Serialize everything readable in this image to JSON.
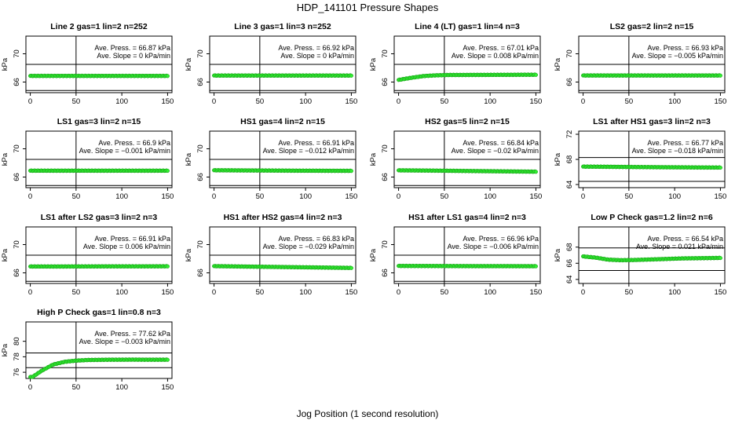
{
  "figure": {
    "title": "HDP_141101  Pressure Shapes",
    "xlabel": "Jog Position (1 second resolution)"
  },
  "style": {
    "point_fill": "#33ee33",
    "point_stroke": "#119911",
    "axis_color": "#000000"
  },
  "chart_data": [
    {
      "type": "scatter",
      "title": "Line 2 gas=1 lin=2 n=252",
      "ylabel": "kPa",
      "xlim": [
        0,
        150
      ],
      "ylim": [
        64.5,
        72.5
      ],
      "xticks": [
        "0",
        "50",
        "100",
        "150"
      ],
      "yticks": [
        "66",
        "70"
      ],
      "ref_vline": 50,
      "band": [
        64.8,
        68.5
      ],
      "ann_press": "Ave. Press. = 66.87  kPa",
      "ann_slope": "Ave. Slope = 0  kPa/min",
      "y_points": [
        66.87,
        66.87
      ]
    },
    {
      "type": "scatter",
      "title": "Line 3 gas=1 lin=3 n=252",
      "ylabel": "kPa",
      "xlim": [
        0,
        150
      ],
      "ylim": [
        64.5,
        72.5
      ],
      "xticks": [
        "0",
        "50",
        "100",
        "150"
      ],
      "yticks": [
        "66",
        "70"
      ],
      "ref_vline": 50,
      "band": [
        64.8,
        68.5
      ],
      "ann_press": "Ave. Press. = 66.92  kPa",
      "ann_slope": "Ave. Slope = 0  kPa/min",
      "y_points": [
        66.92,
        66.92
      ]
    },
    {
      "type": "scatter",
      "title": "Line 4 (LT) gas=1 lin=4 n=3",
      "ylabel": "kPa",
      "xlim": [
        0,
        150
      ],
      "ylim": [
        64.5,
        72.5
      ],
      "xticks": [
        "0",
        "50",
        "100",
        "150"
      ],
      "yticks": [
        "66",
        "70"
      ],
      "ref_vline": 50,
      "band": [
        64.8,
        68.5
      ],
      "ann_press": "Ave. Press. = 67.01  kPa",
      "ann_slope": "Ave. Slope = 0.008  kPa/min",
      "y_points": [
        66.3,
        66.6,
        66.85,
        66.95,
        67.0,
        67.0,
        67.01,
        67.01,
        67.02,
        67.02,
        67.03,
        67.03
      ]
    },
    {
      "type": "scatter",
      "title": "LS2 gas=2 lin=2 n=15",
      "ylabel": "kPa",
      "xlim": [
        0,
        150
      ],
      "ylim": [
        64.5,
        72.5
      ],
      "xticks": [
        "0",
        "50",
        "100",
        "150"
      ],
      "yticks": [
        "66",
        "70"
      ],
      "ref_vline": 50,
      "band": [
        64.8,
        68.5
      ],
      "ann_press": "Ave. Press. = 66.93  kPa",
      "ann_slope": "Ave. Slope = −0.005  kPa/min",
      "y_points": [
        66.93,
        66.93
      ]
    },
    {
      "type": "scatter",
      "title": "LS1 gas=3 lin=2 n=15",
      "ylabel": "kPa",
      "xlim": [
        0,
        150
      ],
      "ylim": [
        64.5,
        72.5
      ],
      "xticks": [
        "0",
        "50",
        "100",
        "150"
      ],
      "yticks": [
        "66",
        "70"
      ],
      "ref_vline": 50,
      "band": [
        64.8,
        68.5
      ],
      "ann_press": "Ave. Press. = 66.9  kPa",
      "ann_slope": "Ave. Slope = −0.001  kPa/min",
      "y_points": [
        66.9,
        66.9
      ]
    },
    {
      "type": "scatter",
      "title": "HS1 gas=4 lin=2 n=15",
      "ylabel": "kPa",
      "xlim": [
        0,
        150
      ],
      "ylim": [
        64.5,
        72.5
      ],
      "xticks": [
        "0",
        "50",
        "100",
        "150"
      ],
      "yticks": [
        "66",
        "70"
      ],
      "ref_vline": 50,
      "band": [
        64.8,
        68.5
      ],
      "ann_press": "Ave. Press. = 66.91  kPa",
      "ann_slope": "Ave. Slope = −0.012  kPa/min",
      "y_points": [
        66.96,
        66.94,
        66.92,
        66.9,
        66.89,
        66.88
      ]
    },
    {
      "type": "scatter",
      "title": "HS2 gas=5 lin=2 n=15",
      "ylabel": "kPa",
      "xlim": [
        0,
        150
      ],
      "ylim": [
        64.5,
        72.5
      ],
      "xticks": [
        "0",
        "50",
        "100",
        "150"
      ],
      "yticks": [
        "66",
        "70"
      ],
      "ref_vline": 50,
      "band": [
        64.8,
        68.5
      ],
      "ann_press": "Ave. Press. = 66.84  kPa",
      "ann_slope": "Ave. Slope = −0.02  kPa/min",
      "y_points": [
        66.95,
        66.92,
        66.88,
        66.84,
        66.8,
        66.76
      ]
    },
    {
      "type": "scatter",
      "title": "LS1 after HS1 gas=3 lin=2 n=3",
      "ylabel": "kPa",
      "xlim": [
        0,
        150
      ],
      "ylim": [
        63.5,
        72.5
      ],
      "xticks": [
        "0",
        "50",
        "100",
        "150"
      ],
      "yticks": [
        "64",
        "68",
        "72"
      ],
      "ref_vline": 50,
      "band": [
        64.5,
        68.3
      ],
      "ann_press": "Ave. Press. = 66.77  kPa",
      "ann_slope": "Ave. Slope = −0.018  kPa/min",
      "y_points": [
        66.85,
        66.82,
        66.78,
        66.75,
        66.72,
        66.7
      ]
    },
    {
      "type": "scatter",
      "title": "LS1 after LS2 gas=3 lin=2 n=3",
      "ylabel": "kPa",
      "xlim": [
        0,
        150
      ],
      "ylim": [
        64.5,
        72.5
      ],
      "xticks": [
        "0",
        "50",
        "100",
        "150"
      ],
      "yticks": [
        "66",
        "70"
      ],
      "ref_vline": 50,
      "band": [
        64.8,
        68.5
      ],
      "ann_press": "Ave. Press. = 66.91  kPa",
      "ann_slope": "Ave. Slope = 0.006  kPa/min",
      "y_points": [
        66.9,
        66.9,
        66.91,
        66.92,
        66.92,
        66.93
      ]
    },
    {
      "type": "scatter",
      "title": "HS1 after HS2 gas=4 lin=2 n=3",
      "ylabel": "kPa",
      "xlim": [
        0,
        150
      ],
      "ylim": [
        64.5,
        72.5
      ],
      "xticks": [
        "0",
        "50",
        "100",
        "150"
      ],
      "yticks": [
        "66",
        "70"
      ],
      "ref_vline": 50,
      "band": [
        64.8,
        68.5
      ],
      "ann_press": "Ave. Press. = 66.83  kPa",
      "ann_slope": "Ave. Slope = −0.029  kPa/min",
      "y_points": [
        66.95,
        66.9,
        66.85,
        66.8,
        66.75,
        66.7
      ]
    },
    {
      "type": "scatter",
      "title": "HS1 after LS1 gas=4 lin=2 n=3",
      "ylabel": "kPa",
      "xlim": [
        0,
        150
      ],
      "ylim": [
        64.5,
        72.5
      ],
      "xticks": [
        "0",
        "50",
        "100",
        "150"
      ],
      "yticks": [
        "66",
        "70"
      ],
      "ref_vline": 50,
      "band": [
        64.8,
        68.5
      ],
      "ann_press": "Ave. Press. = 66.96  kPa",
      "ann_slope": "Ave. Slope = −0.006  kPa/min",
      "y_points": [
        66.98,
        66.97,
        66.96,
        66.95,
        66.95,
        66.94
      ]
    },
    {
      "type": "scatter",
      "title": "Low P Check gas=1.2 lin=2 n=6",
      "ylabel": "kPa",
      "xlim": [
        0,
        150
      ],
      "ylim": [
        63.5,
        70.5
      ],
      "xticks": [
        "0",
        "50",
        "100",
        "150"
      ],
      "yticks": [
        "64",
        "66",
        "68"
      ],
      "ref_vline": 50,
      "band": [
        65.1,
        67.9
      ],
      "ann_press": "Ave. Press. = 66.54  kPa",
      "ann_slope": "Ave. Slope = 0.021  kPa/min",
      "y_points": [
        66.85,
        66.7,
        66.45,
        66.38,
        66.4,
        66.45,
        66.5,
        66.55,
        66.6,
        66.62,
        66.64,
        66.66
      ]
    },
    {
      "type": "scatter",
      "title": "High P Check gas=1 lin=0.8 n=3",
      "ylabel": "kPa",
      "xlim": [
        0,
        150
      ],
      "ylim": [
        75.2,
        82.5
      ],
      "xticks": [
        "0",
        "50",
        "100",
        "150"
      ],
      "yticks": [
        "76",
        "78",
        "80"
      ],
      "ref_vline": 50,
      "band": [
        76.6,
        78.5
      ],
      "ann_press": "Ave. Press. = 77.62  kPa",
      "ann_slope": "Ave. Slope = −0.003  kPa/min",
      "y_points": [
        75.2,
        76.2,
        77.0,
        77.35,
        77.5,
        77.58,
        77.6,
        77.62,
        77.62,
        77.63,
        77.62,
        77.62,
        77.62
      ]
    }
  ]
}
